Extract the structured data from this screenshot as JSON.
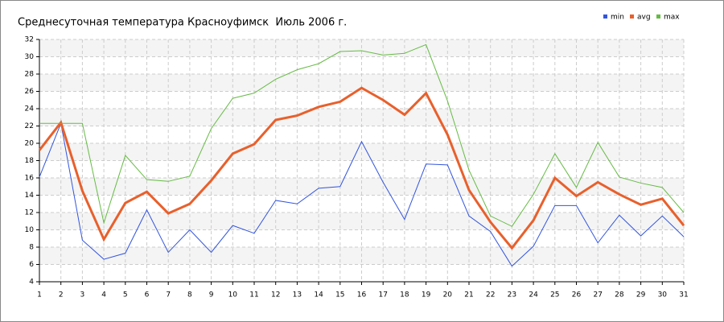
{
  "chart_data": {
    "type": "line",
    "title": "Среднесуточная температура Красноуфимск  Июль 2006 г.",
    "x": [
      1,
      2,
      3,
      4,
      5,
      6,
      7,
      8,
      9,
      10,
      11,
      12,
      13,
      14,
      15,
      16,
      17,
      18,
      19,
      20,
      21,
      22,
      23,
      24,
      25,
      26,
      27,
      28,
      29,
      30,
      31
    ],
    "series": [
      {
        "name": "min",
        "color": "#3355dd",
        "values": [
          16.1,
          22.3,
          8.8,
          6.6,
          7.3,
          12.3,
          7.4,
          10,
          7.4,
          10.5,
          9.6,
          13.4,
          13.0,
          14.8,
          15.0,
          20.2,
          15.5,
          11.2,
          17.6,
          17.5,
          11.6,
          9.8,
          5.8,
          8.1,
          12.8,
          12.8,
          8.5,
          11.7,
          9.3,
          11.6,
          9.2
        ]
      },
      {
        "name": "avg",
        "color": "#e8602c",
        "values": [
          19.2,
          22.4,
          14.5,
          8.9,
          13.1,
          14.4,
          11.9,
          13.0,
          15.7,
          18.8,
          19.9,
          22.7,
          23.2,
          24.2,
          24.8,
          26.4,
          25.0,
          23.3,
          25.8,
          21.0,
          14.6,
          10.9,
          7.9,
          11.1,
          16.0,
          13.9,
          15.5,
          14.1,
          12.9,
          13.6,
          10.5
        ]
      },
      {
        "name": "max",
        "color": "#66bb44",
        "values": [
          22.3,
          22.3,
          22.3,
          10.8,
          18.6,
          15.8,
          15.6,
          16.2,
          21.7,
          25.2,
          25.8,
          27.4,
          28.5,
          29.2,
          30.6,
          30.7,
          30.2,
          30.4,
          31.4,
          24.9,
          16.9,
          11.6,
          10.4,
          14.1,
          18.8,
          14.9,
          20.1,
          16.1,
          15.4,
          14.9,
          12.0
        ]
      }
    ],
    "xlim": [
      1,
      31
    ],
    "xticks": [
      1,
      2,
      3,
      4,
      5,
      6,
      7,
      8,
      9,
      10,
      11,
      12,
      13,
      14,
      15,
      16,
      17,
      18,
      19,
      20,
      21,
      22,
      23,
      24,
      25,
      26,
      27,
      28,
      29,
      30,
      31
    ],
    "ylim": [
      4,
      32
    ],
    "yticks": [
      4,
      6,
      8,
      10,
      12,
      14,
      16,
      18,
      20,
      22,
      24,
      26,
      28,
      30,
      32
    ],
    "grid": true,
    "legend": "top-right"
  }
}
